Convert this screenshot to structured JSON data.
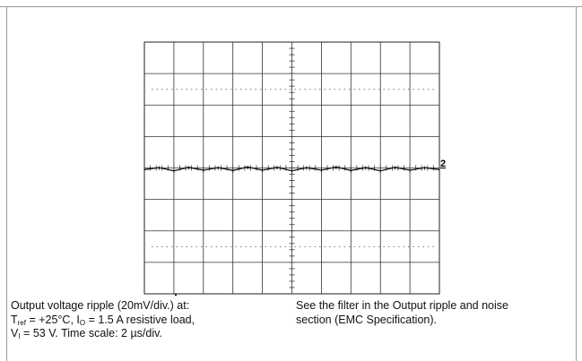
{
  "chart_data": {
    "type": "line",
    "title": "",
    "xlabel": "",
    "ylabel": "",
    "x_divisions": 10,
    "y_divisions": 8,
    "grid": true,
    "center_ticks": true,
    "channel_marker": "2",
    "channel_level_div": 4.05,
    "series": [
      {
        "x": [
          0.0,
          0.5,
          1.0,
          1.5,
          2.0,
          2.5,
          3.0,
          3.5,
          4.0,
          4.5,
          5.0,
          5.5,
          6.0,
          6.5,
          7.0,
          7.5,
          8.0,
          8.5,
          9.0,
          9.5,
          10.0
        ],
        "values": [
          0.0,
          0.06,
          -0.04,
          0.07,
          -0.02,
          0.06,
          -0.03,
          0.08,
          -0.02,
          0.07,
          -0.04,
          0.06,
          -0.02,
          0.08,
          -0.03,
          0.06,
          -0.04,
          0.07,
          -0.02,
          0.06,
          0.0
        ]
      }
    ]
  },
  "caption": {
    "left_line1": "Output voltage ripple (20mV/div.) at:",
    "left_line2_t": "T",
    "left_line2_tsub": "ref",
    "left_line2_mid": " = +25°C, I",
    "left_line2_isub": "O",
    "left_line2_end": " = 1.5 A resistive load,",
    "left_line3_v": "V",
    "left_line3_vsub": "I",
    "left_line3_end": " = 53 V. Time scale: 2 µs/div.",
    "right_line1": "See the filter in the Output ripple and noise",
    "right_line2": "section (EMC Specification)."
  }
}
